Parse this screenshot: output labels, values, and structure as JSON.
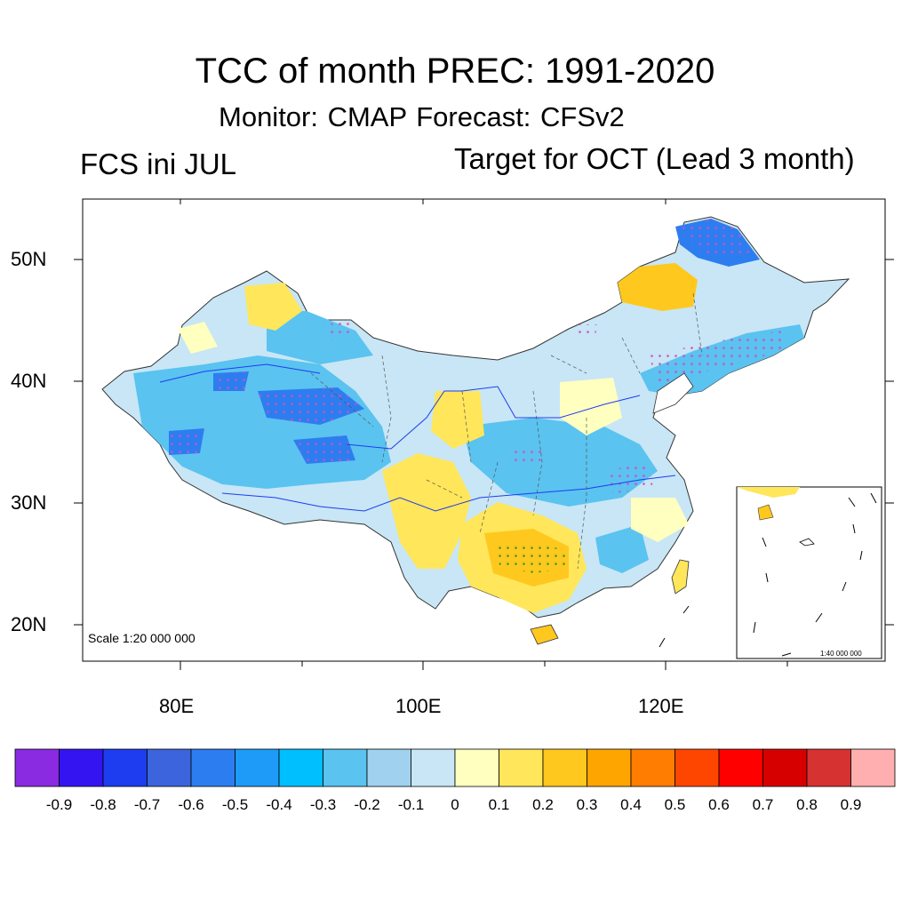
{
  "title": "TCC of month PREC: 1991-2020",
  "subtitle": "Monitor: CMAP   Forecast: CFSv2",
  "left_label": "FCS ini JUL",
  "right_label": "Target for OCT (Lead 3 month)",
  "axes": {
    "lat_ticks": [
      "50N",
      "40N",
      "30N",
      "20N"
    ],
    "lon_ticks": [
      "80E",
      "100E",
      "120E"
    ],
    "lat_range": [
      17,
      55
    ],
    "lon_range": [
      72,
      138
    ]
  },
  "scale_text": "Scale 1:20 000 000",
  "inset_scale_text": "1:40 000 000",
  "colorbar": {
    "labels": [
      "-0.9",
      "-0.8",
      "-0.7",
      "-0.6",
      "-0.5",
      "-0.4",
      "-0.3",
      "-0.2",
      "-0.1",
      "0",
      "0.1",
      "0.2",
      "0.3",
      "0.4",
      "0.5",
      "0.6",
      "0.7",
      "0.8",
      "0.9"
    ],
    "colors": [
      "#8a2be2",
      "#3414f0",
      "#1e3cf0",
      "#3c64dc",
      "#2c7ef0",
      "#1e9bf8",
      "#00bfff",
      "#5ac3f0",
      "#a0d2f0",
      "#c8e6f5",
      "#ffffc0",
      "#ffe65a",
      "#ffc81e",
      "#ffa500",
      "#ff7d00",
      "#ff4600",
      "#ff0000",
      "#d70000",
      "#d73232",
      "#ffafaf"
    ]
  }
}
